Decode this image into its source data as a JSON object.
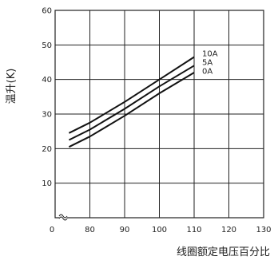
{
  "chart_data": {
    "type": "line",
    "ylabel": "温升(K)",
    "xlabel": "线圈额定电压百分比",
    "xlim": [
      70,
      130
    ],
    "ylim": [
      0,
      60
    ],
    "x_ticks": [
      0,
      80,
      90,
      100,
      110,
      120,
      130
    ],
    "y_ticks": [
      10,
      20,
      30,
      40,
      50,
      60
    ],
    "grid": true,
    "axis_break": true,
    "series": [
      {
        "name": "10A",
        "x": [
          74,
          80,
          90,
          100,
          110
        ],
        "y": [
          24.5,
          27.5,
          33.5,
          40,
          46.5
        ]
      },
      {
        "name": "5A",
        "x": [
          74,
          80,
          90,
          100,
          110
        ],
        "y": [
          22.5,
          25.5,
          31.5,
          38,
          44
        ]
      },
      {
        "name": "0A",
        "x": [
          74,
          80,
          90,
          100,
          110
        ],
        "y": [
          20.5,
          23.5,
          29.5,
          36,
          42
        ]
      }
    ]
  }
}
